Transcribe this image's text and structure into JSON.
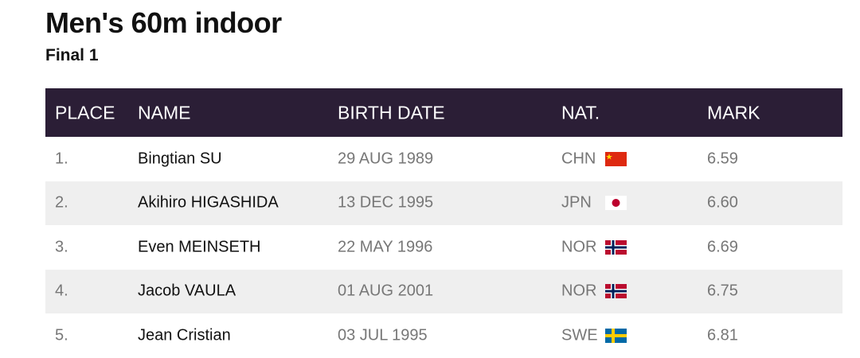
{
  "title": "Men's 60m indoor",
  "subtitle": "Final 1",
  "columns": [
    "PLACE",
    "NAME",
    "BIRTH DATE",
    "NAT.",
    "MARK"
  ],
  "rows": [
    {
      "place": "1.",
      "name": "Bingtian SU",
      "birth": "29 AUG 1989",
      "nat": "CHN",
      "flag": "china-flag",
      "mark": "6.59"
    },
    {
      "place": "2.",
      "name": "Akihiro HIGASHIDA",
      "birth": "13 DEC 1995",
      "nat": "JPN",
      "flag": "japan-flag",
      "mark": "6.60"
    },
    {
      "place": "3.",
      "name": "Even MEINSETH",
      "birth": "22 MAY 1996",
      "nat": "NOR",
      "flag": "norway-flag",
      "mark": "6.69"
    },
    {
      "place": "4.",
      "name": "Jacob VAULA",
      "birth": "01 AUG 2001",
      "nat": "NOR",
      "flag": "norway-flag",
      "mark": "6.75"
    },
    {
      "place": "5.",
      "name": "Jean Cristian",
      "birth": "03 JUL 1995",
      "nat": "SWE",
      "flag": "sweden-flag",
      "mark": "6.81"
    }
  ],
  "colors": {
    "header_bg": "#2b1e36",
    "alt_row": "#efefef"
  }
}
